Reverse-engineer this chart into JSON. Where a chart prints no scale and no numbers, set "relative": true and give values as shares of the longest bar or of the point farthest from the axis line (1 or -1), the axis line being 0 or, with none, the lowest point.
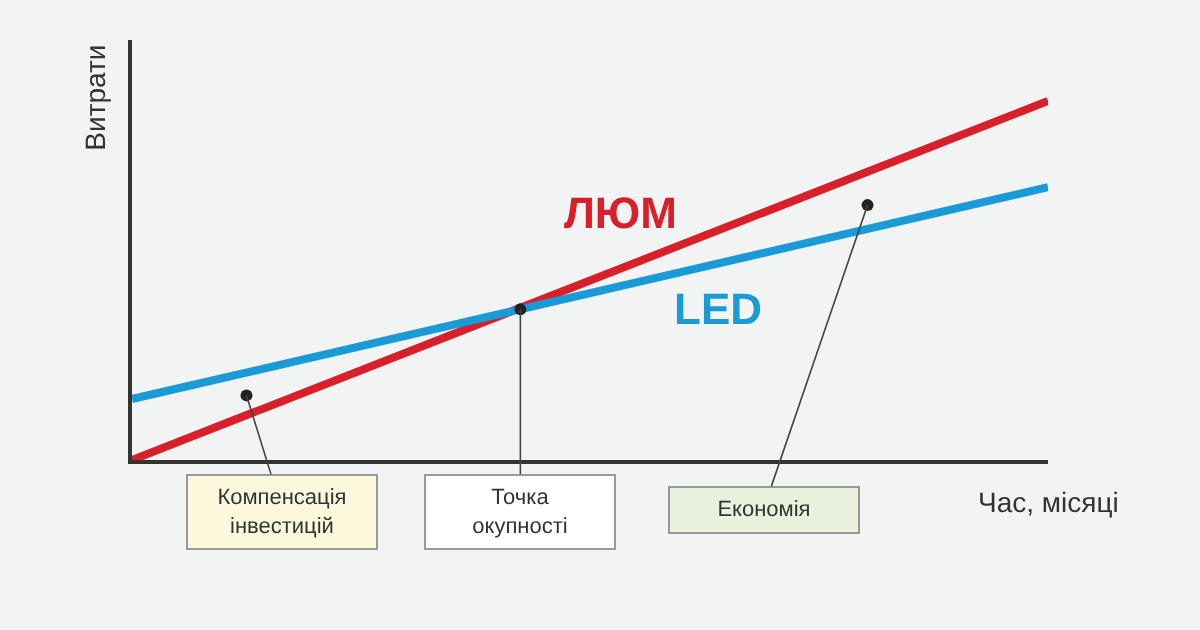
{
  "chart_data": {
    "type": "line",
    "relative": true,
    "xlabel": "Час, місяці",
    "ylabel": "Витрати",
    "categories": [
      null,
      null
    ],
    "series": [
      {
        "name": "ЛЮМ",
        "color": "#d7202a",
        "values": [
          0,
          1
        ]
      },
      {
        "name": "LED",
        "color": "#1a9ad6",
        "values": [
          0.17,
          0.76
        ]
      }
    ],
    "annotations": [
      "Компенсація\nінвестицій",
      "Точка\nокупності",
      "Економія"
    ],
    "grid": false,
    "legend": false,
    "marker": "none",
    "line_style": "solid"
  }
}
